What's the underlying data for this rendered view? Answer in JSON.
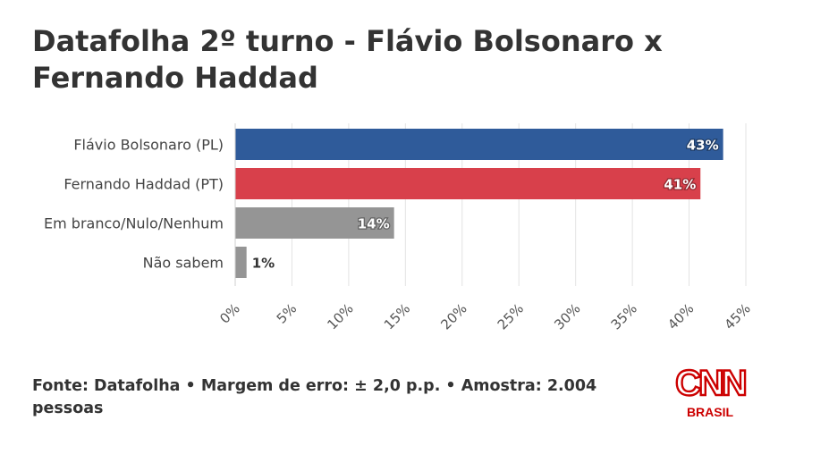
{
  "title": "Datafolha 2º turno - Flávio Bolsonaro x Fernando Haddad",
  "footer": "Fonte: Datafolha • Margem de erro: ± 2,0 p.p. • Amostra: 2.004 pessoas",
  "logo": {
    "text": "CNN",
    "sub": "BRASIL",
    "color": "#cc0000"
  },
  "chart_data": {
    "type": "bar",
    "orientation": "horizontal",
    "categories": [
      "Flávio Bolsonaro (PL)",
      "Fernando Haddad (PT)",
      "Em branco/Nulo/Nenhum",
      "Não sabem"
    ],
    "values": [
      43,
      41,
      14,
      1
    ],
    "data_labels": [
      "43%",
      "41%",
      "14%",
      "1%"
    ],
    "colors": [
      "#2f5b9a",
      "#d8404b",
      "#959595",
      "#959595"
    ],
    "xlim": [
      0,
      45
    ],
    "ticks": [
      0,
      5,
      10,
      15,
      20,
      25,
      30,
      35,
      40,
      45
    ],
    "tick_labels": [
      "0%",
      "5%",
      "10%",
      "15%",
      "20%",
      "25%",
      "30%",
      "35%",
      "40%",
      "45%"
    ],
    "grid": true
  }
}
